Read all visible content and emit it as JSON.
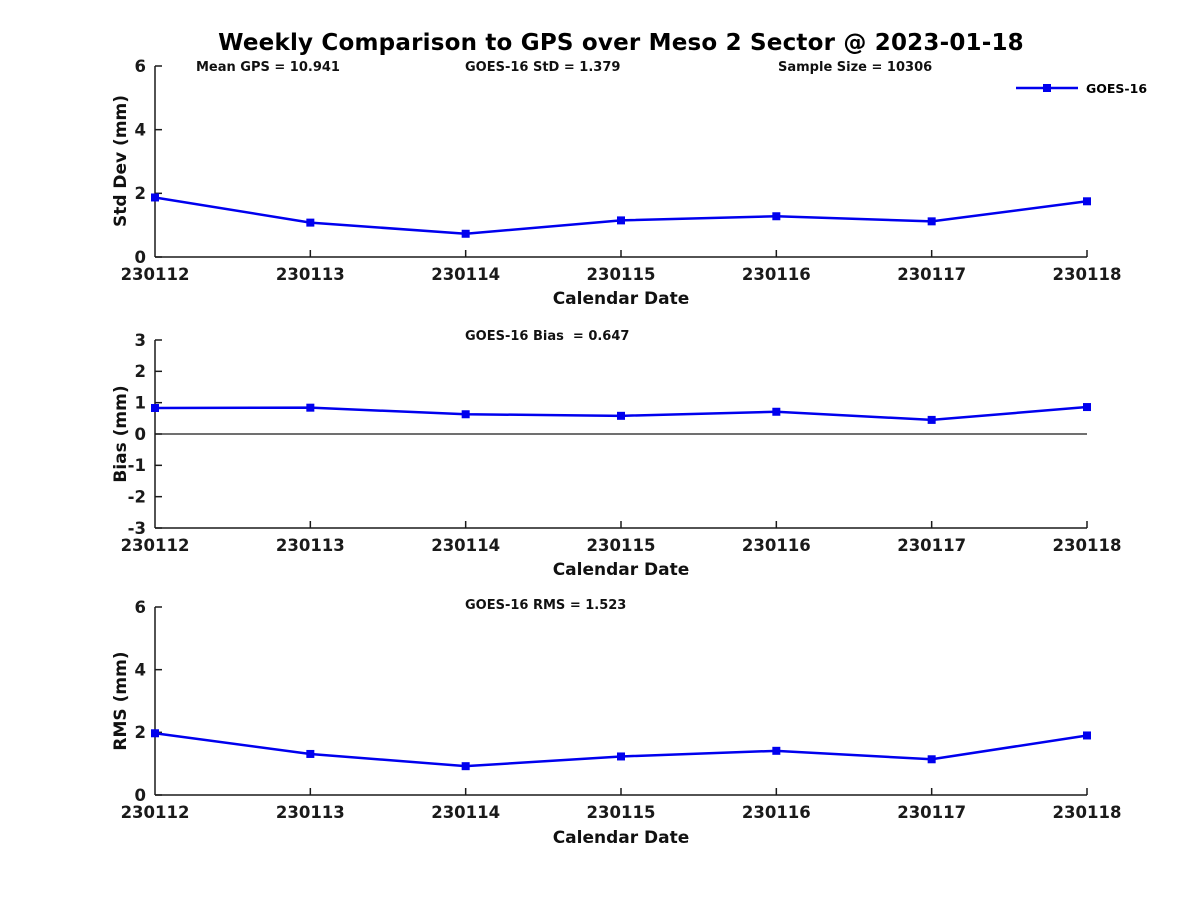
{
  "title": "Weekly Comparison to GPS over Meso 2 Sector @ 2023-01-18",
  "legend": {
    "label": "GOES-16"
  },
  "chart_data": [
    {
      "type": "line",
      "x": [
        "230112",
        "230113",
        "230114",
        "230115",
        "230116",
        "230117",
        "230118"
      ],
      "xlabel": "Calendar Date",
      "ylabel": "Std Dev (mm)",
      "ylim": [
        0,
        6
      ],
      "yticks": [
        0,
        2,
        4,
        6
      ],
      "grid": false,
      "legend_position": "top-right",
      "annotations": [
        "Mean GPS = 10.941",
        "GOES-16 StD = 1.379",
        "Sample Size = 10306"
      ],
      "stats": {
        "mean_gps": 10.941,
        "goes16_std": 1.379,
        "sample_size": 10306
      },
      "series": [
        {
          "name": "GOES-16",
          "color": "#0000EE",
          "marker": "square",
          "values": [
            1.87,
            1.08,
            0.73,
            1.15,
            1.28,
            1.12,
            1.75
          ]
        }
      ]
    },
    {
      "type": "line",
      "x": [
        "230112",
        "230113",
        "230114",
        "230115",
        "230116",
        "230117",
        "230118"
      ],
      "xlabel": "Calendar Date",
      "ylabel": "Bias (mm)",
      "ylim": [
        -3,
        3
      ],
      "yticks": [
        -3,
        -2,
        -1,
        0,
        1,
        2,
        3
      ],
      "zero_line": true,
      "grid": false,
      "annotations": [
        "GOES-16 Bias  = 0.647"
      ],
      "stats": {
        "goes16_bias": 0.647
      },
      "series": [
        {
          "name": "GOES-16",
          "color": "#0000EE",
          "marker": "square",
          "values": [
            0.83,
            0.84,
            0.63,
            0.58,
            0.71,
            0.45,
            0.86
          ]
        }
      ]
    },
    {
      "type": "line",
      "x": [
        "230112",
        "230113",
        "230114",
        "230115",
        "230116",
        "230117",
        "230118"
      ],
      "xlabel": "Calendar Date",
      "ylabel": "RMS (mm)",
      "ylim": [
        0,
        6
      ],
      "yticks": [
        0,
        2,
        4,
        6
      ],
      "grid": false,
      "annotations": [
        "GOES-16 RMS = 1.523"
      ],
      "stats": {
        "goes16_rms": 1.523
      },
      "series": [
        {
          "name": "GOES-16",
          "color": "#0000EE",
          "marker": "square",
          "values": [
            1.97,
            1.31,
            0.92,
            1.23,
            1.41,
            1.14,
            1.9
          ]
        }
      ]
    }
  ]
}
